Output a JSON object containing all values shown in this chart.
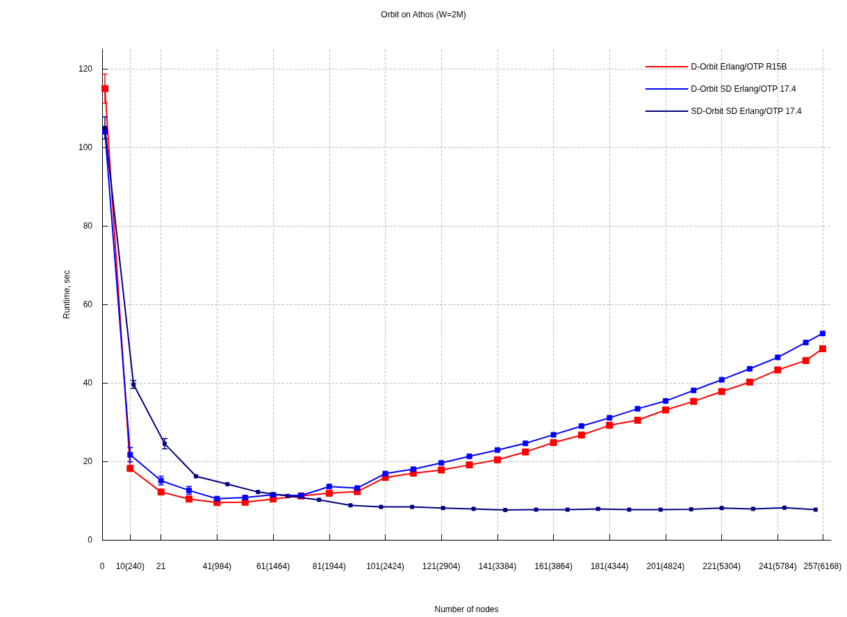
{
  "chart_data": {
    "type": "line",
    "title": "Orbit on Athos (W=2M)",
    "xlabel": "Number of nodes",
    "ylabel": "Runtime, sec",
    "xlim": [
      0,
      260
    ],
    "ylim": [
      0,
      125
    ],
    "xticks": [
      0,
      {
        "value": 10,
        "label": "10(240)"
      },
      21,
      {
        "value": 41,
        "label": "41(984)"
      },
      {
        "value": 61,
        "label": "61(1464)"
      },
      {
        "value": 81,
        "label": "81(1944)"
      },
      {
        "value": 101,
        "label": "101(2424)"
      },
      {
        "value": 121,
        "label": "121(2904)"
      },
      {
        "value": 141,
        "label": "141(3384)"
      },
      {
        "value": 161,
        "label": "161(3864)"
      },
      {
        "value": 181,
        "label": "181(4344)"
      },
      {
        "value": 201,
        "label": "201(4824)"
      },
      {
        "value": 221,
        "label": "221(5304)"
      },
      {
        "value": 241,
        "label": "241(5784)"
      },
      {
        "value": 257,
        "label": "257(6168)"
      }
    ],
    "yticks": [
      0,
      20,
      40,
      60,
      80,
      100,
      120
    ],
    "grid": true,
    "legend": "top right",
    "marker": "square",
    "line_style": "solid",
    "series": [
      {
        "name": "D-Orbit Erlang/OTP R15B",
        "color": "#ff0000",
        "x": [
          1,
          10,
          21,
          31,
          41,
          51,
          61,
          71,
          81,
          91,
          101,
          111,
          121,
          131,
          141,
          151,
          161,
          171,
          181,
          191,
          201,
          211,
          221,
          231,
          241,
          251,
          257
        ],
        "values": [
          115,
          18.2,
          12.2,
          10.4,
          9.5,
          9.6,
          10.4,
          11.2,
          11.9,
          12.3,
          15.9,
          17.0,
          17.8,
          19.1,
          20.4,
          22.4,
          24.8,
          26.7,
          29.2,
          30.5,
          33.1,
          35.3,
          37.8,
          40.2,
          43.3,
          45.7,
          48.7
        ],
        "errors": [
          3.7,
          0.6,
          null,
          null,
          null,
          null,
          null,
          null,
          null,
          null,
          null,
          null,
          null,
          null,
          null,
          null,
          null,
          null,
          null,
          null,
          null,
          null,
          null,
          null,
          null,
          null,
          null
        ]
      },
      {
        "name": "D-Orbit SD Erlang/OTP 17.4",
        "color": "#0000ff",
        "x": [
          1,
          10,
          21,
          31,
          41,
          51,
          61,
          71,
          81,
          91,
          101,
          111,
          121,
          131,
          141,
          151,
          161,
          171,
          181,
          191,
          201,
          211,
          221,
          231,
          241,
          251,
          257
        ],
        "values": [
          104,
          21.7,
          15.1,
          12.6,
          10.5,
          10.8,
          11.5,
          11.3,
          13.6,
          13.2,
          16.9,
          18.0,
          19.6,
          21.3,
          22.9,
          24.6,
          26.8,
          29.0,
          31.1,
          33.4,
          35.4,
          38.1,
          40.8,
          43.6,
          46.5,
          50.3,
          52.6
        ],
        "errors": [
          null,
          1.8,
          1.1,
          1.0,
          null,
          null,
          null,
          null,
          null,
          null,
          null,
          null,
          null,
          null,
          null,
          null,
          null,
          null,
          null,
          null,
          null,
          null,
          null,
          null,
          null,
          null,
          null
        ]
      },
      {
        "name": "SD-Orbit SD Erlang/OTP 17.4",
        "color": "#000080",
        "x": [
          1,
          11.2,
          22.3,
          33.5,
          44.7,
          55.6,
          66.2,
          77.4,
          88.6,
          99.5,
          110.6,
          121.6,
          132.5,
          143.8,
          154.8,
          166,
          176.9,
          188,
          199.2,
          210.1,
          221,
          232.2,
          243.4,
          254.5
        ],
        "values": [
          105,
          39.6,
          24.5,
          16.2,
          14.2,
          12.2,
          11.2,
          10.2,
          8.8,
          8.4,
          8.4,
          8.1,
          7.9,
          7.6,
          7.7,
          7.7,
          7.9,
          7.7,
          7.7,
          7.8,
          8.1,
          7.9,
          8.2,
          7.7
        ],
        "errors": [
          2.8,
          1.0,
          1.3,
          null,
          null,
          null,
          null,
          null,
          null,
          null,
          null,
          null,
          null,
          null,
          null,
          null,
          null,
          null,
          null,
          null,
          null,
          null,
          null,
          null
        ]
      }
    ]
  }
}
